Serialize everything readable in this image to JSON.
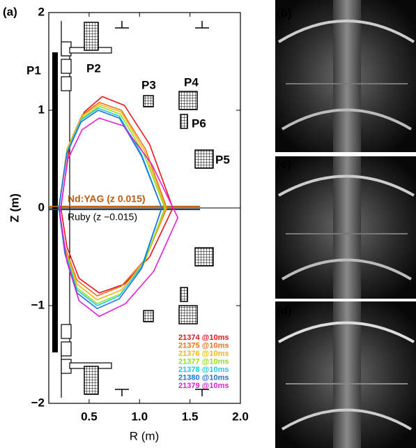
{
  "chart_data": {
    "type": "line",
    "panel_labels": [
      "(a)",
      "(b)",
      "(c)",
      "(d)"
    ],
    "xlabel": "R (m)",
    "ylabel": "Z (m)",
    "xlim": [
      0.1,
      2.0
    ],
    "ylim": [
      -2,
      2
    ],
    "xticks": [
      0.5,
      {
        "value": 1,
        "label": "1.0"
      },
      1.5,
      {
        "value": 2,
        "label": "2.0"
      }
    ],
    "yticks": [
      {
        "value": -2,
        "label": "−2"
      },
      {
        "value": -1,
        "label": "−1"
      },
      0,
      1,
      2
    ],
    "coil_labels": [
      "P1",
      "P2",
      "P3",
      "P4",
      "P5",
      "P6"
    ],
    "annotations": [
      "Nd:YAG (z 0.015)",
      "Ruby (z −0.015)"
    ],
    "lasers": [
      {
        "color": "#b85c10",
        "x": [
          0.1,
          1.6
        ],
        "values": [
          0.015,
          0.015
        ]
      },
      {
        "color": "#333333",
        "x": [
          0.1,
          1.6
        ],
        "values": [
          -0.015,
          -0.015
        ]
      }
    ],
    "series": [
      {
        "name": "21374 @10ms",
        "color": "#e8141c",
        "x": [
          0.22,
          0.3,
          0.45,
          0.63,
          0.85,
          1.1,
          1.33,
          1.1,
          0.85,
          0.6,
          0.4,
          0.28,
          0.22
        ],
        "values": [
          0,
          0.6,
          0.98,
          1.14,
          1.05,
          0.65,
          0,
          -0.5,
          -0.78,
          -0.87,
          -0.72,
          -0.4,
          0
        ]
      },
      {
        "name": "21375 @10ms",
        "color": "#f07018",
        "x": [
          0.2,
          0.28,
          0.43,
          0.6,
          0.82,
          1.06,
          1.27,
          1.06,
          0.82,
          0.58,
          0.38,
          0.26,
          0.2
        ],
        "values": [
          0,
          0.6,
          0.95,
          1.08,
          1.0,
          0.6,
          0,
          -0.52,
          -0.8,
          -0.9,
          -0.74,
          -0.4,
          0
        ]
      },
      {
        "name": "21376 @10ms",
        "color": "#f0b818",
        "x": [
          0.2,
          0.28,
          0.43,
          0.6,
          0.82,
          1.05,
          1.26,
          1.05,
          0.82,
          0.58,
          0.38,
          0.26,
          0.2
        ],
        "values": [
          0,
          0.6,
          0.94,
          1.06,
          0.98,
          0.58,
          0,
          -0.55,
          -0.84,
          -0.94,
          -0.78,
          -0.42,
          0
        ]
      },
      {
        "name": "21377 @10ms",
        "color": "#90e020",
        "x": [
          0.2,
          0.28,
          0.43,
          0.6,
          0.81,
          1.04,
          1.25,
          1.04,
          0.81,
          0.58,
          0.38,
          0.26,
          0.2
        ],
        "values": [
          0,
          0.58,
          0.92,
          1.04,
          0.96,
          0.56,
          0,
          -0.58,
          -0.88,
          -0.98,
          -0.82,
          -0.44,
          0
        ]
      },
      {
        "name": "21378 @10ms",
        "color": "#20c8e8",
        "x": [
          0.2,
          0.28,
          0.42,
          0.59,
          0.8,
          1.02,
          1.22,
          1.02,
          0.8,
          0.58,
          0.38,
          0.26,
          0.2
        ],
        "values": [
          0,
          0.57,
          0.9,
          1.02,
          0.94,
          0.55,
          0,
          -0.6,
          -0.9,
          -1.0,
          -0.84,
          -0.45,
          0
        ]
      },
      {
        "name": "21380 @10ms",
        "color": "#2070d8",
        "x": [
          0.2,
          0.28,
          0.42,
          0.59,
          0.8,
          1.02,
          1.22,
          1.02,
          0.8,
          0.58,
          0.38,
          0.26,
          0.2
        ],
        "values": [
          0,
          0.56,
          0.88,
          1.0,
          0.92,
          0.53,
          0,
          -0.62,
          -0.93,
          -1.03,
          -0.87,
          -0.47,
          0
        ]
      },
      {
        "name": "21379 @10ms",
        "color": "#e020d8",
        "x": [
          0.21,
          0.29,
          0.43,
          0.6,
          0.84,
          1.12,
          1.38,
          1.14,
          0.86,
          0.6,
          0.4,
          0.28,
          0.21
        ],
        "values": [
          -0.05,
          0.5,
          0.8,
          0.92,
          0.84,
          0.45,
          -0.1,
          -0.65,
          -0.98,
          -1.11,
          -0.95,
          -0.55,
          -0.05
        ]
      }
    ]
  }
}
